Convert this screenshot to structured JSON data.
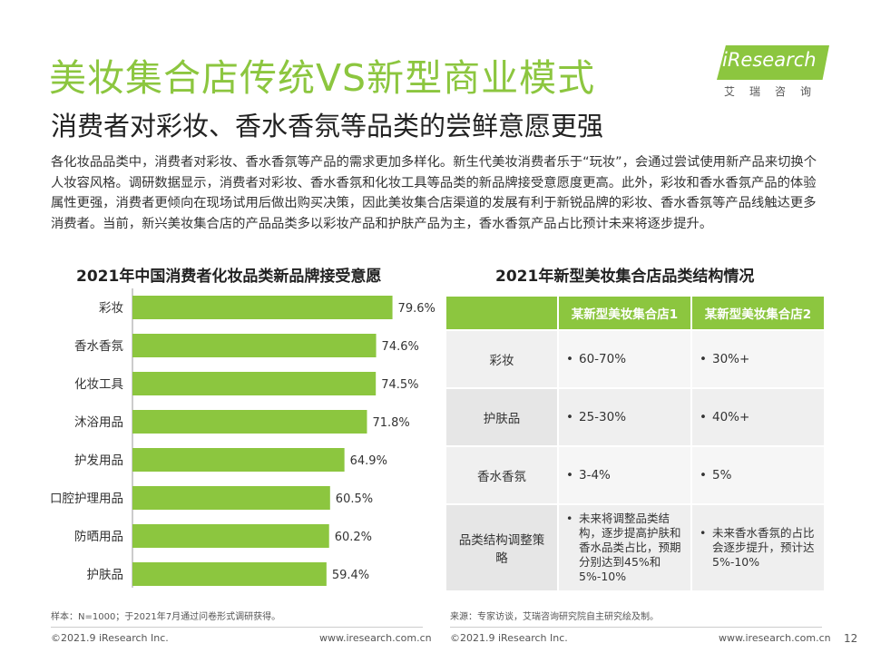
{
  "header": {
    "title": "美妆集合店传统VS新型商业模式",
    "subtitle": "消费者对彩妆、香水香氛等品类的尝鲜意愿更强"
  },
  "logo": {
    "text": "iResearch",
    "cn": "艾瑞咨询"
  },
  "intro": "各化妆品品类中，消费者对彩妆、香水香氛等产品的需求更加多样化。新生代美妆消费者乐于“玩妆”，会通过尝试使用新产品来切换个人妆容风格。调研数据显示，消费者对彩妆、香水香氛和化妆工具等品类的新品牌接受意愿度更高。此外，彩妆和香水香氛产品的体验属性更强，消费者更倾向在现场试用后做出购买决策，因此美妆集合店渠道的发展有利于新锐品牌的彩妆、香水香氛等产品线触达更多消费者。当前，新兴美妆集合店的产品品类多以彩妆产品和护肤产品为主，香水香氛产品占比预计未来将逐步提升。",
  "chart_data": {
    "type": "bar",
    "orientation": "horizontal",
    "title": "2021年中国消费者化妆品类新品牌接受意愿",
    "categories": [
      "彩妆",
      "香水香氛",
      "化妆工具",
      "沐浴用品",
      "护发用品",
      "口腔护理用品",
      "防晒用品",
      "护肤品"
    ],
    "values": [
      79.6,
      74.6,
      74.5,
      71.8,
      64.9,
      60.5,
      60.2,
      59.4
    ],
    "value_labels": [
      "79.6%",
      "74.6%",
      "74.5%",
      "71.8%",
      "64.9%",
      "60.5%",
      "60.2%",
      "59.4%"
    ],
    "xlim": [
      0,
      100
    ],
    "grid": false,
    "bar_color": "#8cc63f"
  },
  "table": {
    "title": "2021年新型美妆集合店品类结构情况",
    "headers": [
      "",
      "某新型美妆集合店1",
      "某新型美妆集合店2"
    ],
    "rows": [
      {
        "category": "彩妆",
        "store1": "60-70%",
        "store2": "30%+"
      },
      {
        "category": "护肤品",
        "store1": "25-30%",
        "store2": "40%+"
      },
      {
        "category": "香水香氛",
        "store1": "3-4%",
        "store2": "5%"
      },
      {
        "category": "品类结构调整策略",
        "store1": "未来将调整品类结构，逐步提高护肤和香水品类占比，预期分别达到45%和5%-10%",
        "store2": "未来香水香氛的占比会逐步提升，预计达5%-10%"
      }
    ],
    "bullet": "•"
  },
  "notes": {
    "left": "样本：N=1000；于2021年7月通过问卷形式调研获得。",
    "right": "来源：专家访谈，艾瑞咨询研究院自主研究绘及制。"
  },
  "footer": {
    "copyright_left": "©2021.9 iResearch Inc.",
    "url_left": "www.iresearch.com.cn",
    "copyright_right": "©2021.9 iResearch Inc.",
    "url_right": "www.iresearch.com.cn",
    "page": "12"
  },
  "colors": {
    "accent": "#8cc63f"
  }
}
